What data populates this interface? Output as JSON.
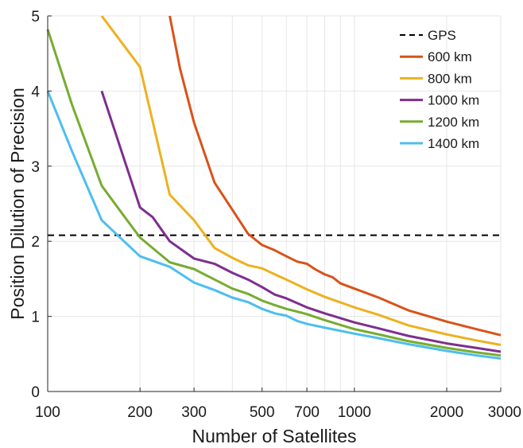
{
  "chart_data": {
    "type": "line",
    "xscale": "log",
    "xlabel": "Number of Satellites",
    "ylabel": "Position Dilution of Precision",
    "xlim": [
      100,
      3000
    ],
    "ylim": [
      0,
      5
    ],
    "xticks": [
      100,
      200,
      300,
      500,
      700,
      1000,
      2000,
      3000
    ],
    "xtick_labels": [
      "100",
      "200",
      "300",
      "500",
      "700",
      "1000",
      "2000",
      "3000"
    ],
    "yticks": [
      0,
      1,
      2,
      3,
      4,
      5
    ],
    "ytick_labels": [
      "0",
      "1",
      "2",
      "3",
      "4",
      "5"
    ],
    "grid": true,
    "legend_position": "top-right",
    "reference": {
      "name": "GPS",
      "y": 2.08,
      "style": "dashed",
      "color": "#000000"
    },
    "series": [
      {
        "name": "600 km",
        "color": "#D95319",
        "points": [
          [
            250,
            5.0
          ],
          [
            270,
            4.3
          ],
          [
            300,
            3.58
          ],
          [
            350,
            2.78
          ],
          [
            400,
            2.42
          ],
          [
            450,
            2.1
          ],
          [
            500,
            1.95
          ],
          [
            550,
            1.88
          ],
          [
            600,
            1.8
          ],
          [
            650,
            1.73
          ],
          [
            700,
            1.7
          ],
          [
            750,
            1.62
          ],
          [
            800,
            1.56
          ],
          [
            850,
            1.52
          ],
          [
            900,
            1.44
          ],
          [
            1000,
            1.37
          ],
          [
            1200,
            1.25
          ],
          [
            1500,
            1.08
          ],
          [
            2000,
            0.93
          ],
          [
            2500,
            0.83
          ],
          [
            3000,
            0.75
          ]
        ]
      },
      {
        "name": "800 km",
        "color": "#EDB120",
        "points": [
          [
            150,
            5.0
          ],
          [
            200,
            4.32
          ],
          [
            250,
            2.62
          ],
          [
            300,
            2.28
          ],
          [
            350,
            1.91
          ],
          [
            400,
            1.78
          ],
          [
            450,
            1.68
          ],
          [
            500,
            1.64
          ],
          [
            550,
            1.56
          ],
          [
            600,
            1.49
          ],
          [
            700,
            1.36
          ],
          [
            800,
            1.26
          ],
          [
            1000,
            1.12
          ],
          [
            1200,
            1.02
          ],
          [
            1500,
            0.88
          ],
          [
            2000,
            0.76
          ],
          [
            2500,
            0.68
          ],
          [
            3000,
            0.62
          ]
        ]
      },
      {
        "name": "1000 km",
        "color": "#7E2F8E",
        "points": [
          [
            150,
            4.0
          ],
          [
            200,
            2.45
          ],
          [
            220,
            2.32
          ],
          [
            250,
            2.0
          ],
          [
            300,
            1.77
          ],
          [
            350,
            1.7
          ],
          [
            400,
            1.58
          ],
          [
            450,
            1.49
          ],
          [
            500,
            1.39
          ],
          [
            550,
            1.29
          ],
          [
            600,
            1.24
          ],
          [
            700,
            1.12
          ],
          [
            800,
            1.04
          ],
          [
            1000,
            0.92
          ],
          [
            1200,
            0.84
          ],
          [
            1500,
            0.74
          ],
          [
            2000,
            0.64
          ],
          [
            2500,
            0.58
          ],
          [
            3000,
            0.53
          ]
        ]
      },
      {
        "name": "1200 km",
        "color": "#77AC30",
        "points": [
          [
            100,
            4.82
          ],
          [
            120,
            3.82
          ],
          [
            150,
            2.74
          ],
          [
            180,
            2.3
          ],
          [
            200,
            2.05
          ],
          [
            250,
            1.72
          ],
          [
            300,
            1.63
          ],
          [
            350,
            1.49
          ],
          [
            400,
            1.37
          ],
          [
            450,
            1.3
          ],
          [
            500,
            1.21
          ],
          [
            550,
            1.15
          ],
          [
            600,
            1.1
          ],
          [
            700,
            1.03
          ],
          [
            800,
            0.95
          ],
          [
            1000,
            0.83
          ],
          [
            1200,
            0.76
          ],
          [
            1500,
            0.67
          ],
          [
            2000,
            0.58
          ],
          [
            2500,
            0.52
          ],
          [
            3000,
            0.48
          ]
        ]
      },
      {
        "name": "1400 km",
        "color": "#4DBEEE",
        "points": [
          [
            100,
            4.0
          ],
          [
            120,
            3.2
          ],
          [
            150,
            2.28
          ],
          [
            170,
            2.07
          ],
          [
            200,
            1.8
          ],
          [
            250,
            1.66
          ],
          [
            300,
            1.45
          ],
          [
            350,
            1.35
          ],
          [
            400,
            1.25
          ],
          [
            450,
            1.19
          ],
          [
            500,
            1.1
          ],
          [
            550,
            1.04
          ],
          [
            600,
            1.01
          ],
          [
            650,
            0.94
          ],
          [
            700,
            0.9
          ],
          [
            800,
            0.85
          ],
          [
            1000,
            0.77
          ],
          [
            1200,
            0.71
          ],
          [
            1500,
            0.63
          ],
          [
            2000,
            0.54
          ],
          [
            2500,
            0.48
          ],
          [
            3000,
            0.44
          ]
        ]
      }
    ]
  }
}
